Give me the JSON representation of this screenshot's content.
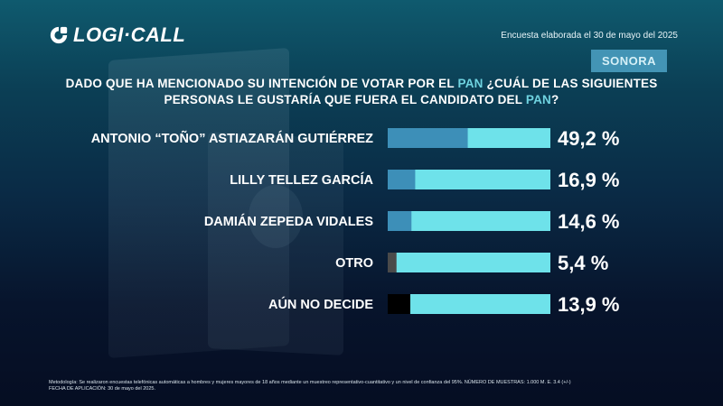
{
  "header": {
    "logo_text": "LOGI·CALL",
    "survey_date": "Encuesta elaborada el 30 de mayo del 2025",
    "region": "SONORA"
  },
  "question": {
    "part1": "DADO QUE HA MENCIONADO SU INTENCIÓN DE VOTAR POR EL ",
    "hl1": "PAN",
    "part2": " ¿CUÁL DE LAS SIGUIENTES",
    "part3": "PERSONAS LE GUSTARÍA QUE FUERA EL CANDIDATO DEL ",
    "hl2": "PAN",
    "part4": "?"
  },
  "colors": {
    "bar_fill": "#6ee2ea",
    "highlight": "#6fd3e0",
    "badge": "#4394b5"
  },
  "chart_data": {
    "type": "bar",
    "orientation": "horizontal",
    "categories": [
      "ANTONIO “TOÑO” ASTIAZARÁN GUTIÉRREZ",
      "LILLY TELLEZ GARCÍA",
      "DAMIÁN ZEPEDA VIDALES",
      "OTRO",
      "AÚN NO DECIDE"
    ],
    "values": [
      49.2,
      16.9,
      14.6,
      5.4,
      13.9
    ],
    "value_labels": [
      "49,2 %",
      "16,9 %",
      "14,6 %",
      "5,4 %",
      "13,9 %"
    ],
    "segment_colors": [
      "#3d8fb8",
      "#3d8fb8",
      "#3d8fb8",
      "#4a4a4a",
      "#000000"
    ],
    "xlim": [
      0,
      100
    ]
  },
  "footnote": {
    "line1": "Metodología: Se realizaron encuestas telefónicas automáticas a hombres y mujeres mayores de 18 años mediante un muestreo representativo-cuantitativo y un nivel de confianza del 95%. NÚMERO DE MUESTRAS: 1.000 M. E. 3.4 (+/-)",
    "line2": "FECHA DE APLICACIÓN: 30 de mayo del 2025."
  }
}
